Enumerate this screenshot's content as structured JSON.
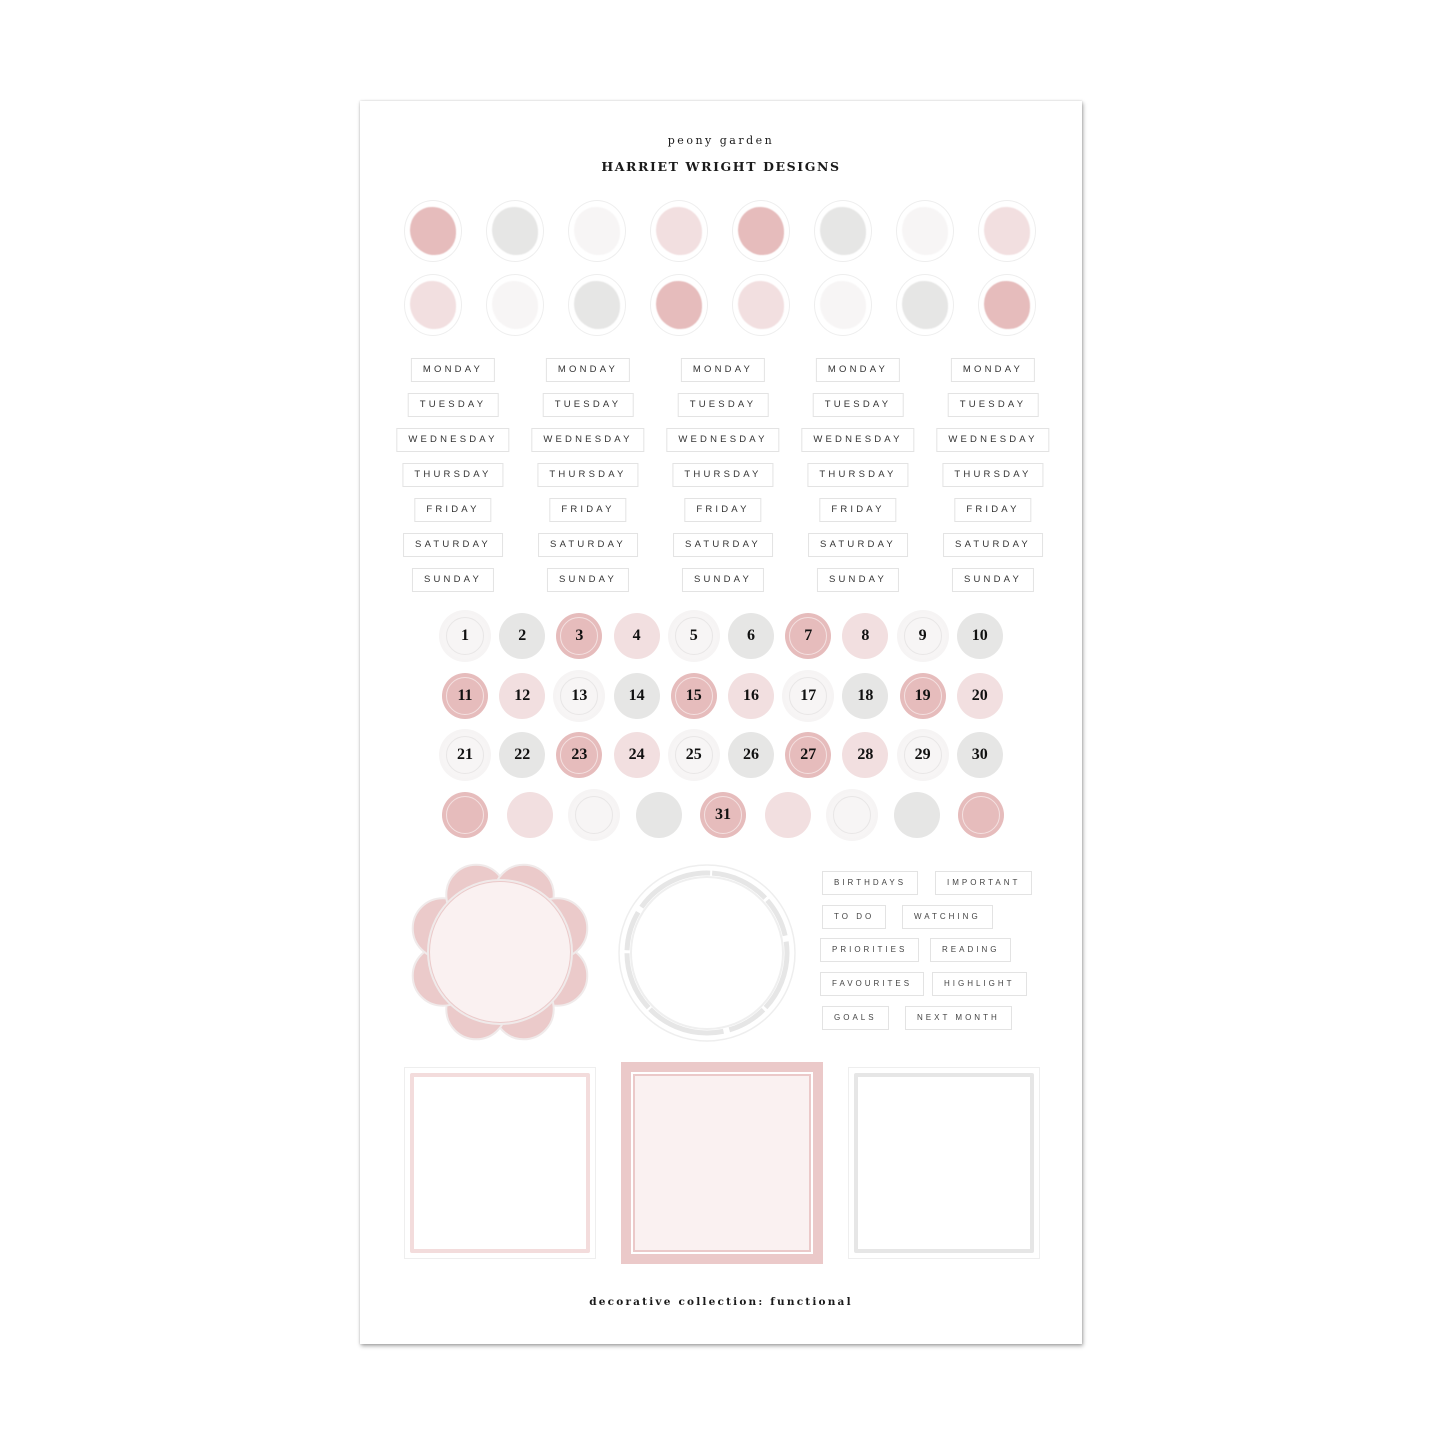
{
  "header": {
    "subtitle": "peony garden",
    "title": "HARRIET WRIGHT DESIGNS"
  },
  "footer": "decorative collection: functional",
  "colors": {
    "dark_pink": "#e6bcbc",
    "light_pink": "#f2dfe0",
    "gray": "#e6e6e5",
    "white": "#f7f5f5"
  },
  "swatch_rows": [
    [
      "dark_pink",
      "gray",
      "white",
      "light_pink",
      "dark_pink",
      "gray",
      "white",
      "light_pink"
    ],
    [
      "light_pink",
      "white",
      "gray",
      "dark_pink",
      "light_pink",
      "white",
      "gray",
      "dark_pink"
    ]
  ],
  "days": [
    "MONDAY",
    "TUESDAY",
    "WEDNESDAY",
    "THURSDAY",
    "FRIDAY",
    "SATURDAY",
    "SUNDAY"
  ],
  "day_columns": 5,
  "numbers": [
    {
      "n": "1",
      "c": "white"
    },
    {
      "n": "2",
      "c": "gray"
    },
    {
      "n": "3",
      "c": "dark_pink"
    },
    {
      "n": "4",
      "c": "light_pink"
    },
    {
      "n": "5",
      "c": "white"
    },
    {
      "n": "6",
      "c": "gray"
    },
    {
      "n": "7",
      "c": "dark_pink"
    },
    {
      "n": "8",
      "c": "light_pink"
    },
    {
      "n": "9",
      "c": "white"
    },
    {
      "n": "10",
      "c": "gray"
    },
    {
      "n": "11",
      "c": "dark_pink"
    },
    {
      "n": "12",
      "c": "light_pink"
    },
    {
      "n": "13",
      "c": "white"
    },
    {
      "n": "14",
      "c": "gray"
    },
    {
      "n": "15",
      "c": "dark_pink"
    },
    {
      "n": "16",
      "c": "light_pink"
    },
    {
      "n": "17",
      "c": "white"
    },
    {
      "n": "18",
      "c": "gray"
    },
    {
      "n": "19",
      "c": "dark_pink"
    },
    {
      "n": "20",
      "c": "light_pink"
    },
    {
      "n": "21",
      "c": "white"
    },
    {
      "n": "22",
      "c": "gray"
    },
    {
      "n": "23",
      "c": "dark_pink"
    },
    {
      "n": "24",
      "c": "light_pink"
    },
    {
      "n": "25",
      "c": "white"
    },
    {
      "n": "26",
      "c": "gray"
    },
    {
      "n": "27",
      "c": "dark_pink"
    },
    {
      "n": "28",
      "c": "light_pink"
    },
    {
      "n": "29",
      "c": "white"
    },
    {
      "n": "30",
      "c": "gray"
    },
    {
      "n": "",
      "c": "dark_pink"
    },
    {
      "n": "",
      "c": "light_pink"
    },
    {
      "n": "",
      "c": "white"
    },
    {
      "n": "",
      "c": "gray"
    },
    {
      "n": "31",
      "c": "dark_pink"
    },
    {
      "n": "",
      "c": "light_pink"
    },
    {
      "n": "",
      "c": "white"
    },
    {
      "n": "",
      "c": "gray"
    },
    {
      "n": "",
      "c": "dark_pink"
    }
  ],
  "tags": [
    [
      "BIRTHDAYS",
      "IMPORTANT"
    ],
    [
      "TO DO",
      "WATCHING"
    ],
    [
      "PRIORITIES",
      "READING"
    ],
    [
      "FAVOURITES",
      "HIGHLIGHT"
    ],
    [
      "GOALS",
      "NEXT MONTH"
    ]
  ]
}
